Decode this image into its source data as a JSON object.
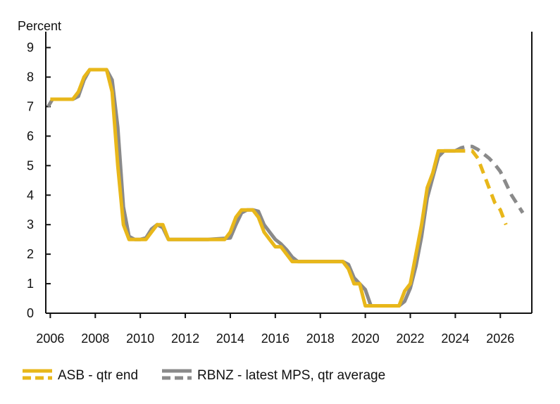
{
  "colors": {
    "asb": "#E8B71A",
    "rbnz": "#8A8A8A",
    "axis": "#111111"
  },
  "chart_data": {
    "type": "line",
    "ylabel": "Percent",
    "xlim": [
      2005.8,
      2027.4
    ],
    "ylim": [
      0,
      9.3
    ],
    "yticks": [
      0,
      1,
      2,
      3,
      4,
      5,
      6,
      7,
      8,
      9
    ],
    "xticks": [
      2006,
      2008,
      2010,
      2012,
      2014,
      2016,
      2018,
      2020,
      2022,
      2024,
      2026
    ],
    "legend_position": "bottom-left",
    "legend": [
      {
        "label": "ASB - qtr end",
        "color": "#E8B71A"
      },
      {
        "label": "RBNZ - latest MPS, qtr average",
        "color": "#8A8A8A"
      }
    ],
    "series": [
      {
        "name": "ASB - qtr end",
        "color": "#E8B71A",
        "points": [
          [
            2006.0,
            7.25
          ],
          [
            2006.25,
            7.25
          ],
          [
            2006.5,
            7.25
          ],
          [
            2006.75,
            7.25
          ],
          [
            2007.0,
            7.25
          ],
          [
            2007.25,
            7.5
          ],
          [
            2007.5,
            8.0
          ],
          [
            2007.75,
            8.25
          ],
          [
            2008.0,
            8.25
          ],
          [
            2008.25,
            8.25
          ],
          [
            2008.5,
            8.25
          ],
          [
            2008.75,
            7.5
          ],
          [
            2009.0,
            5.0
          ],
          [
            2009.25,
            3.0
          ],
          [
            2009.5,
            2.5
          ],
          [
            2009.75,
            2.5
          ],
          [
            2010.0,
            2.5
          ],
          [
            2010.25,
            2.5
          ],
          [
            2010.5,
            2.75
          ],
          [
            2010.75,
            3.0
          ],
          [
            2011.0,
            3.0
          ],
          [
            2011.25,
            2.5
          ],
          [
            2011.5,
            2.5
          ],
          [
            2012.0,
            2.5
          ],
          [
            2013.0,
            2.5
          ],
          [
            2013.75,
            2.5
          ],
          [
            2014.0,
            2.75
          ],
          [
            2014.25,
            3.25
          ],
          [
            2014.5,
            3.5
          ],
          [
            2014.75,
            3.5
          ],
          [
            2015.0,
            3.5
          ],
          [
            2015.25,
            3.25
          ],
          [
            2015.5,
            2.75
          ],
          [
            2015.75,
            2.5
          ],
          [
            2016.0,
            2.25
          ],
          [
            2016.25,
            2.25
          ],
          [
            2016.5,
            2.0
          ],
          [
            2016.75,
            1.75
          ],
          [
            2017.0,
            1.75
          ],
          [
            2018.0,
            1.75
          ],
          [
            2019.0,
            1.75
          ],
          [
            2019.25,
            1.5
          ],
          [
            2019.5,
            1.0
          ],
          [
            2019.75,
            1.0
          ],
          [
            2020.0,
            0.25
          ],
          [
            2020.5,
            0.25
          ],
          [
            2021.0,
            0.25
          ],
          [
            2021.5,
            0.25
          ],
          [
            2021.75,
            0.75
          ],
          [
            2022.0,
            1.0
          ],
          [
            2022.25,
            2.0
          ],
          [
            2022.5,
            3.0
          ],
          [
            2022.75,
            4.25
          ],
          [
            2023.0,
            4.75
          ],
          [
            2023.25,
            5.5
          ],
          [
            2023.5,
            5.5
          ],
          [
            2023.75,
            5.5
          ],
          [
            2024.0,
            5.5
          ]
        ],
        "forecast": [
          [
            2024.0,
            5.5
          ],
          [
            2024.25,
            5.5
          ],
          [
            2024.5,
            5.5
          ],
          [
            2024.75,
            5.5
          ],
          [
            2025.0,
            5.25
          ],
          [
            2025.25,
            4.75
          ],
          [
            2025.5,
            4.25
          ],
          [
            2025.75,
            3.75
          ],
          [
            2026.0,
            3.5
          ],
          [
            2026.25,
            3.0
          ]
        ]
      },
      {
        "name": "RBNZ - latest MPS, qtr average",
        "color": "#8A8A8A",
        "points": [
          [
            2005.9,
            7.0
          ],
          [
            2006.1,
            7.25
          ],
          [
            2006.5,
            7.25
          ],
          [
            2006.75,
            7.25
          ],
          [
            2007.0,
            7.25
          ],
          [
            2007.25,
            7.35
          ],
          [
            2007.5,
            7.9
          ],
          [
            2007.75,
            8.25
          ],
          [
            2008.0,
            8.25
          ],
          [
            2008.25,
            8.25
          ],
          [
            2008.5,
            8.25
          ],
          [
            2008.75,
            7.9
          ],
          [
            2009.0,
            6.3
          ],
          [
            2009.25,
            3.6
          ],
          [
            2009.5,
            2.6
          ],
          [
            2009.75,
            2.5
          ],
          [
            2010.0,
            2.5
          ],
          [
            2010.25,
            2.55
          ],
          [
            2010.5,
            2.85
          ],
          [
            2010.75,
            3.0
          ],
          [
            2011.0,
            2.9
          ],
          [
            2011.25,
            2.5
          ],
          [
            2011.5,
            2.5
          ],
          [
            2012.0,
            2.5
          ],
          [
            2013.0,
            2.5
          ],
          [
            2014.0,
            2.55
          ],
          [
            2014.25,
            3.0
          ],
          [
            2014.5,
            3.4
          ],
          [
            2014.75,
            3.5
          ],
          [
            2015.0,
            3.5
          ],
          [
            2015.25,
            3.45
          ],
          [
            2015.5,
            3.0
          ],
          [
            2015.75,
            2.75
          ],
          [
            2016.0,
            2.5
          ],
          [
            2016.25,
            2.35
          ],
          [
            2016.5,
            2.15
          ],
          [
            2016.75,
            1.9
          ],
          [
            2017.0,
            1.75
          ],
          [
            2018.0,
            1.75
          ],
          [
            2019.0,
            1.75
          ],
          [
            2019.25,
            1.65
          ],
          [
            2019.5,
            1.2
          ],
          [
            2019.75,
            1.0
          ],
          [
            2020.0,
            0.8
          ],
          [
            2020.25,
            0.25
          ],
          [
            2020.5,
            0.25
          ],
          [
            2021.0,
            0.25
          ],
          [
            2021.5,
            0.25
          ],
          [
            2021.75,
            0.4
          ],
          [
            2022.0,
            0.85
          ],
          [
            2022.25,
            1.6
          ],
          [
            2022.5,
            2.6
          ],
          [
            2022.75,
            3.9
          ],
          [
            2023.0,
            4.6
          ],
          [
            2023.25,
            5.3
          ],
          [
            2023.5,
            5.5
          ],
          [
            2023.75,
            5.5
          ],
          [
            2024.0,
            5.5
          ]
        ],
        "forecast": [
          [
            2024.0,
            5.5
          ],
          [
            2024.25,
            5.6
          ],
          [
            2024.5,
            5.65
          ],
          [
            2024.75,
            5.65
          ],
          [
            2025.0,
            5.55
          ],
          [
            2025.25,
            5.4
          ],
          [
            2025.5,
            5.25
          ],
          [
            2025.75,
            5.05
          ],
          [
            2026.0,
            4.8
          ],
          [
            2026.25,
            4.4
          ],
          [
            2026.5,
            4.0
          ],
          [
            2026.75,
            3.7
          ],
          [
            2027.0,
            3.4
          ]
        ]
      }
    ]
  }
}
